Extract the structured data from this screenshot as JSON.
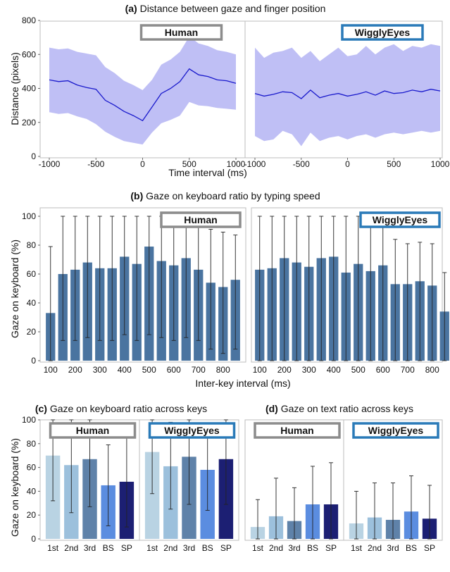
{
  "chart_data": [
    {
      "panel": "(a)",
      "type": "line",
      "title": "Distance between gaze and finger position",
      "xlabel": "Time interval (ms)",
      "ylabel": "Distance (pixels)",
      "xlim": [
        -1000,
        1000
      ],
      "ylim": [
        0,
        800
      ],
      "xticks": [
        -1000,
        -500,
        0,
        500,
        1000
      ],
      "yticks": [
        0,
        200,
        400,
        600,
        800
      ],
      "grid": false,
      "colors": {
        "line": "#1a1acc",
        "band": "#a9a9f2"
      },
      "subplots": [
        {
          "label": "Human",
          "label_border": "#8c8c8c",
          "x": [
            -1000,
            -900,
            -800,
            -700,
            -600,
            -500,
            -400,
            -300,
            -200,
            -100,
            0,
            100,
            200,
            300,
            400,
            500,
            600,
            700,
            800,
            900,
            1000
          ],
          "y": [
            450,
            440,
            445,
            420,
            405,
            395,
            330,
            300,
            265,
            240,
            210,
            290,
            370,
            400,
            440,
            515,
            480,
            470,
            450,
            445,
            430
          ],
          "y_low": [
            260,
            250,
            255,
            235,
            220,
            190,
            145,
            115,
            90,
            80,
            70,
            140,
            195,
            215,
            240,
            320,
            300,
            295,
            285,
            280,
            275
          ],
          "y_high": [
            640,
            630,
            635,
            615,
            605,
            595,
            525,
            490,
            445,
            420,
            390,
            450,
            540,
            570,
            615,
            705,
            665,
            650,
            625,
            615,
            600
          ]
        },
        {
          "label": "WigglyEyes",
          "label_border": "#2a7ab8",
          "x": [
            -1000,
            -900,
            -800,
            -700,
            -600,
            -500,
            -400,
            -300,
            -200,
            -100,
            0,
            100,
            200,
            300,
            400,
            500,
            600,
            700,
            800,
            900,
            1000
          ],
          "y": [
            370,
            355,
            365,
            380,
            375,
            340,
            390,
            345,
            360,
            370,
            355,
            365,
            380,
            360,
            385,
            370,
            375,
            390,
            380,
            395,
            385
          ],
          "y_low": [
            120,
            90,
            100,
            150,
            130,
            60,
            140,
            90,
            110,
            120,
            100,
            120,
            130,
            110,
            130,
            140,
            130,
            140,
            150,
            140,
            150
          ],
          "y_high": [
            640,
            580,
            610,
            620,
            640,
            580,
            620,
            560,
            600,
            640,
            590,
            600,
            650,
            600,
            640,
            660,
            620,
            650,
            640,
            660,
            650
          ]
        }
      ]
    },
    {
      "panel": "(b)",
      "type": "bar",
      "title": "Gaze on keyboard ratio by typing speed",
      "xlabel": "Inter-key interval (ms)",
      "ylabel": "Gaze on keyboard (%)",
      "ylim": [
        0,
        100
      ],
      "yticks": [
        0,
        20,
        40,
        60,
        80,
        100
      ],
      "xticks": [
        100,
        200,
        300,
        400,
        500,
        600,
        700,
        800
      ],
      "xlim": [
        75,
        875
      ],
      "bar_width": 38,
      "bar_color": "#4a74a0",
      "subplots": [
        {
          "label": "Human",
          "label_border": "#8c8c8c",
          "x": [
            100,
            150,
            200,
            250,
            300,
            350,
            400,
            450,
            500,
            550,
            600,
            650,
            700,
            750,
            800,
            850
          ],
          "values": [
            33,
            60,
            63,
            68,
            64,
            64,
            72,
            67,
            79,
            69,
            66,
            71,
            63,
            54,
            51,
            56
          ],
          "err_low": [
            0,
            14,
            14,
            16,
            14,
            14,
            18,
            14,
            18,
            16,
            14,
            16,
            14,
            8,
            5,
            8
          ],
          "err_high": [
            79,
            100,
            100,
            100,
            100,
            100,
            100,
            100,
            100,
            100,
            100,
            100,
            100,
            91,
            89,
            87
          ]
        },
        {
          "label": "WigglyEyes",
          "label_border": "#2a7ab8",
          "x": [
            100,
            150,
            200,
            250,
            300,
            350,
            400,
            450,
            500,
            550,
            600,
            650,
            700,
            750,
            800,
            850
          ],
          "values": [
            63,
            64,
            71,
            68,
            65,
            71,
            72,
            61,
            67,
            62,
            66,
            53,
            53,
            55,
            52,
            34
          ],
          "err_low": [
            0,
            0,
            0,
            0,
            0,
            0,
            0,
            0,
            0,
            0,
            0,
            0,
            0,
            0,
            0,
            0
          ],
          "err_high": [
            100,
            100,
            100,
            100,
            100,
            100,
            100,
            100,
            100,
            100,
            100,
            84,
            81,
            82,
            81,
            61
          ]
        }
      ]
    },
    {
      "panel": "(c)",
      "type": "bar",
      "title": "Gaze on keyboard ratio across keys",
      "ylabel": "Gaze on keyboard (%)",
      "ylim": [
        0,
        100
      ],
      "yticks": [
        0,
        20,
        40,
        60,
        80,
        100
      ],
      "categories": [
        "1st",
        "2nd",
        "3rd",
        "BS",
        "SP"
      ],
      "colors": [
        "#b9d3e3",
        "#9cc0dc",
        "#5f82a9",
        "#5b8de0",
        "#1c1f73"
      ],
      "subplots": [
        {
          "label": "Human",
          "label_border": "#8c8c8c",
          "values": [
            70,
            62,
            67,
            45,
            48
          ],
          "err_low": [
            32,
            22,
            27,
            11,
            10
          ],
          "err_high": [
            100,
            100,
            100,
            79,
            87
          ]
        },
        {
          "label": "WigglyEyes",
          "label_border": "#2a7ab8",
          "values": [
            73,
            61,
            69,
            58,
            67
          ],
          "err_low": [
            38,
            25,
            29,
            24,
            29
          ],
          "err_high": [
            100,
            98,
            100,
            92,
            100
          ]
        }
      ]
    },
    {
      "panel": "(d)",
      "type": "bar",
      "title": "Gaze on text ratio across keys",
      "ylim": [
        0,
        100
      ],
      "categories": [
        "1st",
        "2nd",
        "3rd",
        "BS",
        "SP"
      ],
      "colors": [
        "#b9d3e3",
        "#9cc0dc",
        "#5f82a9",
        "#5b8de0",
        "#1c1f73"
      ],
      "subplots": [
        {
          "label": "Human",
          "label_border": "#8c8c8c",
          "values": [
            10,
            19,
            15,
            29,
            29
          ],
          "err_low": [
            0,
            0,
            0,
            0,
            0
          ],
          "err_high": [
            33,
            51,
            43,
            61,
            64
          ]
        },
        {
          "label": "WigglyEyes",
          "label_border": "#2a7ab8",
          "values": [
            13,
            18,
            16,
            23,
            17
          ],
          "err_low": [
            0,
            0,
            0,
            0,
            0
          ],
          "err_high": [
            40,
            47,
            47,
            53,
            45
          ]
        }
      ]
    }
  ]
}
